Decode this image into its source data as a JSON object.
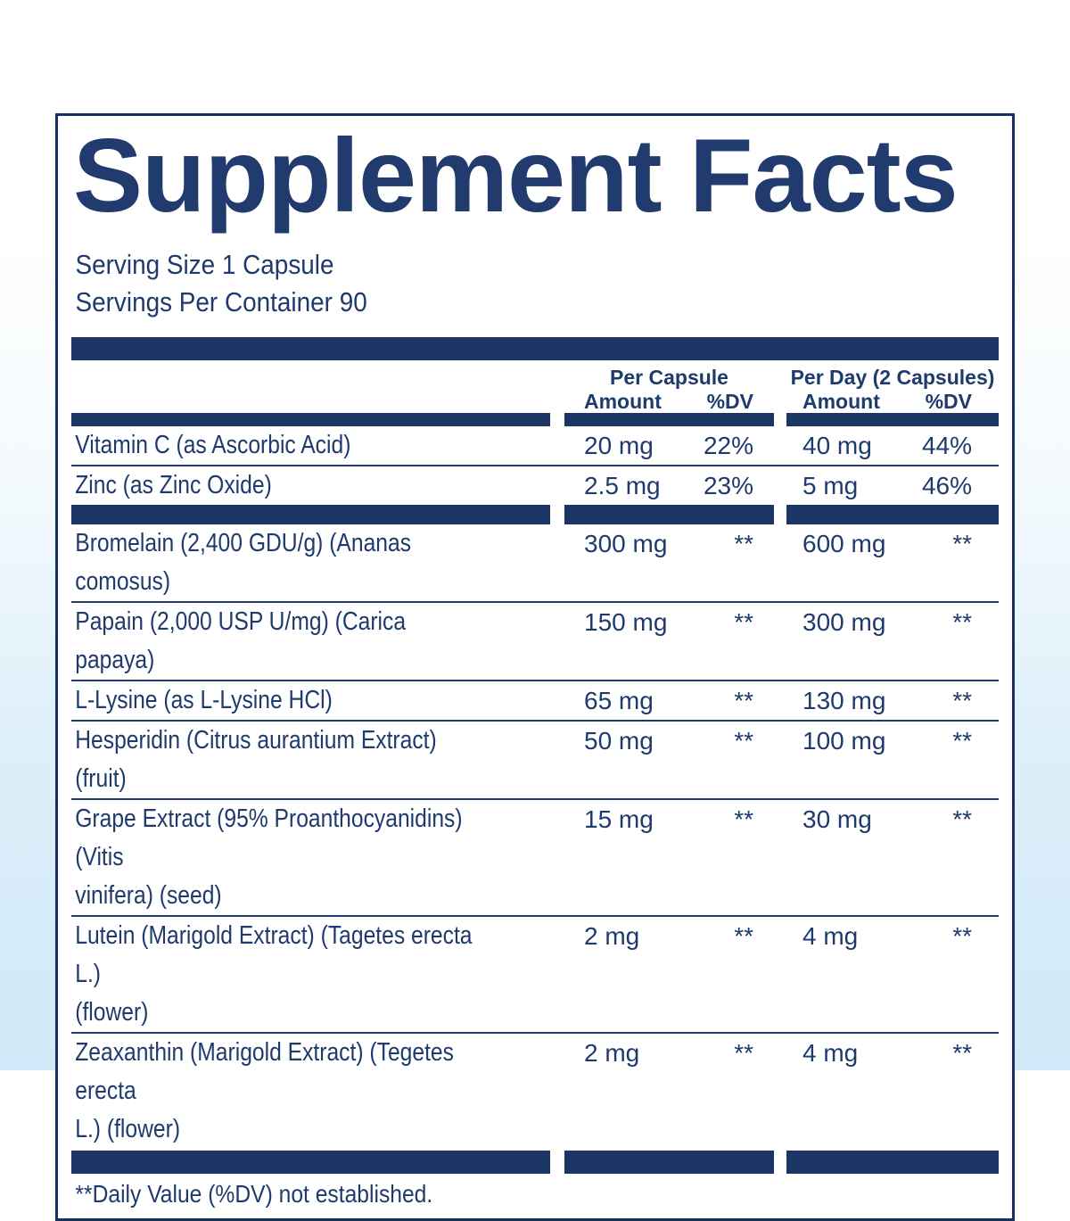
{
  "colors": {
    "navy_text": "#1f3a6d",
    "navy_bar": "#1b3565",
    "panel_border": "#16305e",
    "panel_background": "#ffffff",
    "page_background_top": "#ffffff",
    "page_background_bottom": "#cfe9f8"
  },
  "label": {
    "title": "Supplement Facts",
    "serving_size": "Serving Size 1 Capsule",
    "servings_per_container": "Servings Per Container 90",
    "header": {
      "per_capsule": "Per Capsule",
      "per_day": "Per Day (2 Capsules)",
      "amount_capsule": "Amount",
      "dv_capsule": "%DV",
      "amount_day": "Amount",
      "dv_day": "%DV"
    },
    "rows": [
      {
        "name": "Vitamin C (as Ascorbic Acid)",
        "capsule_amount": "20 mg",
        "capsule_dv": "22%",
        "day_amount": "40 mg",
        "day_dv": "44%",
        "after": "line"
      },
      {
        "name": "Zinc (as Zinc Oxide)",
        "capsule_amount": "2.5 mg",
        "capsule_dv": "23%",
        "day_amount": "5 mg",
        "day_dv": "46%",
        "after": "bar"
      },
      {
        "name": "Bromelain (2,400 GDU/g) (Ananas comosus)",
        "capsule_amount": "300 mg",
        "capsule_dv": "**",
        "day_amount": "600 mg",
        "day_dv": "**",
        "after": "line"
      },
      {
        "name": "Papain (2,000 USP U/mg) (Carica papaya)",
        "capsule_amount": "150 mg",
        "capsule_dv": "**",
        "day_amount": "300 mg",
        "day_dv": "**",
        "after": "line"
      },
      {
        "name": "L-Lysine (as L-Lysine HCl)",
        "capsule_amount": "65 mg",
        "capsule_dv": "**",
        "day_amount": "130 mg",
        "day_dv": "**",
        "after": "line"
      },
      {
        "name": "Hesperidin (Citrus aurantium Extract) (fruit)",
        "capsule_amount": "50 mg",
        "capsule_dv": "**",
        "day_amount": "100 mg",
        "day_dv": "**",
        "after": "line"
      },
      {
        "name": "Grape Extract (95% Proanthocyanidins) (Vitis\nvinifera) (seed)",
        "capsule_amount": "15 mg",
        "capsule_dv": "**",
        "day_amount": "30 mg",
        "day_dv": "**",
        "after": "line"
      },
      {
        "name": "Lutein (Marigold Extract) (Tagetes erecta L.)\n(flower)",
        "capsule_amount": "2 mg",
        "capsule_dv": "**",
        "day_amount": "4 mg",
        "day_dv": "**",
        "after": "line"
      },
      {
        "name": "Zeaxanthin (Marigold Extract) (Tegetes erecta\nL.) (flower)",
        "capsule_amount": "2 mg",
        "capsule_dv": "**",
        "day_amount": "4 mg",
        "day_dv": "**",
        "after": "bigbar"
      }
    ],
    "footnote": "**Daily Value (%DV) not established."
  }
}
